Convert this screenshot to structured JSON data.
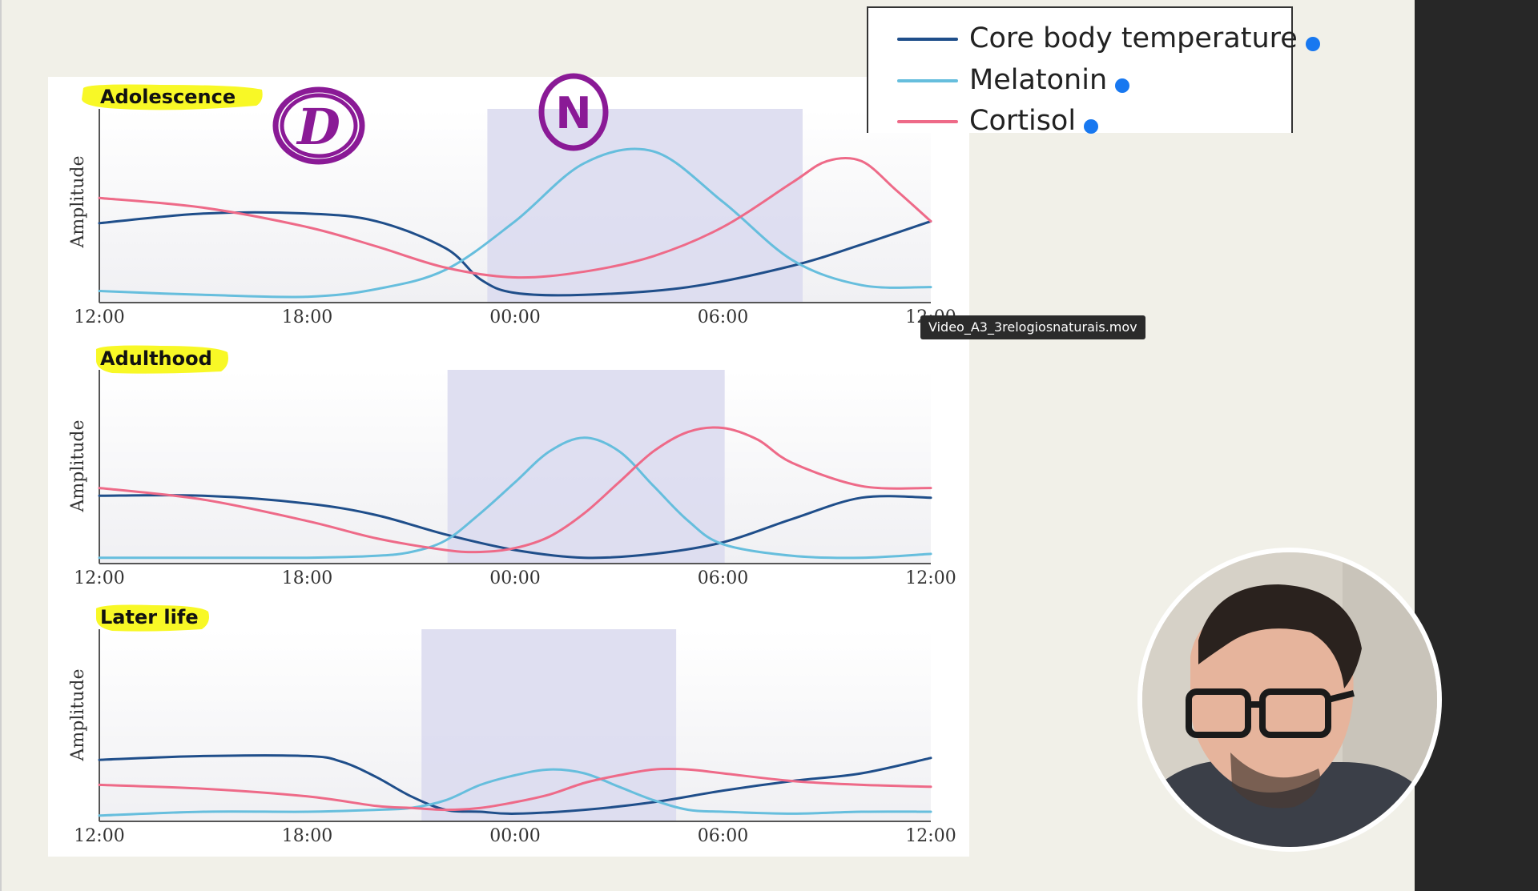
{
  "chart_data": {
    "type": "line",
    "legend": {
      "placement": "top-right",
      "entries": [
        {
          "name": "Core body temperature",
          "color": "#1f4e8a"
        },
        {
          "name": "Melatonin",
          "color": "#66bedd"
        },
        {
          "name": "Cortisol",
          "color": "#ee6a88"
        }
      ]
    },
    "x_ticks": [
      "12:00",
      "18:00",
      "00:00",
      "06:00",
      "12:00"
    ],
    "xlim_hours": [
      0,
      24
    ],
    "ylabel": "Amplitude",
    "panels": [
      {
        "title": "Adolescence",
        "sleep_window_hours": [
          11.2,
          20.3
        ],
        "series": [
          {
            "name": "Core body temperature",
            "x": [
              0,
              3,
              6,
              8,
              10,
              11,
              12,
              14,
              17,
              20,
              22,
              24
            ],
            "y": [
              0.41,
              0.46,
              0.46,
              0.42,
              0.28,
              0.12,
              0.05,
              0.04,
              0.08,
              0.19,
              0.3,
              0.42
            ]
          },
          {
            "name": "Melatonin",
            "x": [
              0,
              3,
              6,
              8,
              10,
              12,
              14,
              16,
              18,
              20,
              22,
              24
            ],
            "y": [
              0.06,
              0.04,
              0.03,
              0.07,
              0.17,
              0.42,
              0.72,
              0.78,
              0.52,
              0.22,
              0.09,
              0.08
            ]
          },
          {
            "name": "Cortisol",
            "x": [
              0,
              3,
              6,
              8,
              10,
              12,
              14,
              16,
              18,
              20,
              21,
              22,
              23,
              24
            ],
            "y": [
              0.54,
              0.49,
              0.39,
              0.29,
              0.18,
              0.13,
              0.16,
              0.24,
              0.39,
              0.62,
              0.73,
              0.73,
              0.58,
              0.42
            ]
          }
        ]
      },
      {
        "title": "Adulthood",
        "sleep_window_hours": [
          10.05,
          18.05
        ],
        "series": [
          {
            "name": "Core body temperature",
            "x": [
              0,
              3,
              6,
              8,
              10,
              12,
              14,
              16,
              18,
              20,
              22,
              24
            ],
            "y": [
              0.35,
              0.35,
              0.31,
              0.25,
              0.15,
              0.07,
              0.03,
              0.05,
              0.11,
              0.23,
              0.34,
              0.34
            ]
          },
          {
            "name": "Melatonin",
            "x": [
              0,
              3,
              6,
              8,
              9,
              10,
              11,
              12,
              13,
              14,
              15,
              16,
              17,
              18,
              20,
              22,
              24
            ],
            "y": [
              0.03,
              0.03,
              0.03,
              0.04,
              0.06,
              0.12,
              0.26,
              0.42,
              0.58,
              0.65,
              0.58,
              0.4,
              0.22,
              0.1,
              0.04,
              0.03,
              0.05
            ]
          },
          {
            "name": "Cortisol",
            "x": [
              0,
              3,
              6,
              8,
              10,
              11,
              12,
              13,
              14,
              15,
              16,
              17,
              18,
              19,
              20,
              22,
              24
            ],
            "y": [
              0.39,
              0.33,
              0.22,
              0.13,
              0.07,
              0.06,
              0.08,
              0.14,
              0.26,
              0.42,
              0.58,
              0.68,
              0.7,
              0.64,
              0.52,
              0.4,
              0.39
            ]
          }
        ]
      },
      {
        "title": "Later life",
        "sleep_window_hours": [
          9.3,
          16.65
        ],
        "series": [
          {
            "name": "Core body temperature",
            "x": [
              0,
              3,
              6,
              7,
              8,
              9,
              10,
              11,
              12,
              14,
              16,
              18,
              20,
              22,
              24
            ],
            "y": [
              0.32,
              0.34,
              0.34,
              0.31,
              0.23,
              0.13,
              0.06,
              0.05,
              0.04,
              0.06,
              0.1,
              0.16,
              0.21,
              0.25,
              0.33
            ]
          },
          {
            "name": "Melatonin",
            "x": [
              0,
              3,
              6,
              8,
              9,
              10,
              11,
              12,
              13,
              14,
              15,
              16,
              17,
              18,
              20,
              22,
              24
            ],
            "y": [
              0.03,
              0.05,
              0.05,
              0.06,
              0.07,
              0.11,
              0.19,
              0.24,
              0.27,
              0.25,
              0.18,
              0.11,
              0.06,
              0.05,
              0.04,
              0.05,
              0.05
            ]
          },
          {
            "name": "Cortisol",
            "x": [
              0,
              3,
              6,
              8,
              9,
              10,
              11,
              12,
              13,
              14,
              15,
              16,
              17,
              18,
              20,
              22,
              24
            ],
            "y": [
              0.19,
              0.17,
              0.13,
              0.08,
              0.07,
              0.06,
              0.07,
              0.1,
              0.14,
              0.2,
              0.24,
              0.27,
              0.27,
              0.25,
              0.21,
              0.19,
              0.18
            ]
          }
        ]
      }
    ]
  },
  "annotations": {
    "day_mark": "D",
    "night_mark": "N",
    "highlight_color": "#f7f700",
    "ink_color": "#8a1a96"
  },
  "tooltip": {
    "text": "Video_A3_3relogiosnaturais.mov"
  },
  "colors": {
    "sleep_band": "#dcdcef",
    "background": "#f1f0e8",
    "legend_dot": "#1878f0"
  }
}
